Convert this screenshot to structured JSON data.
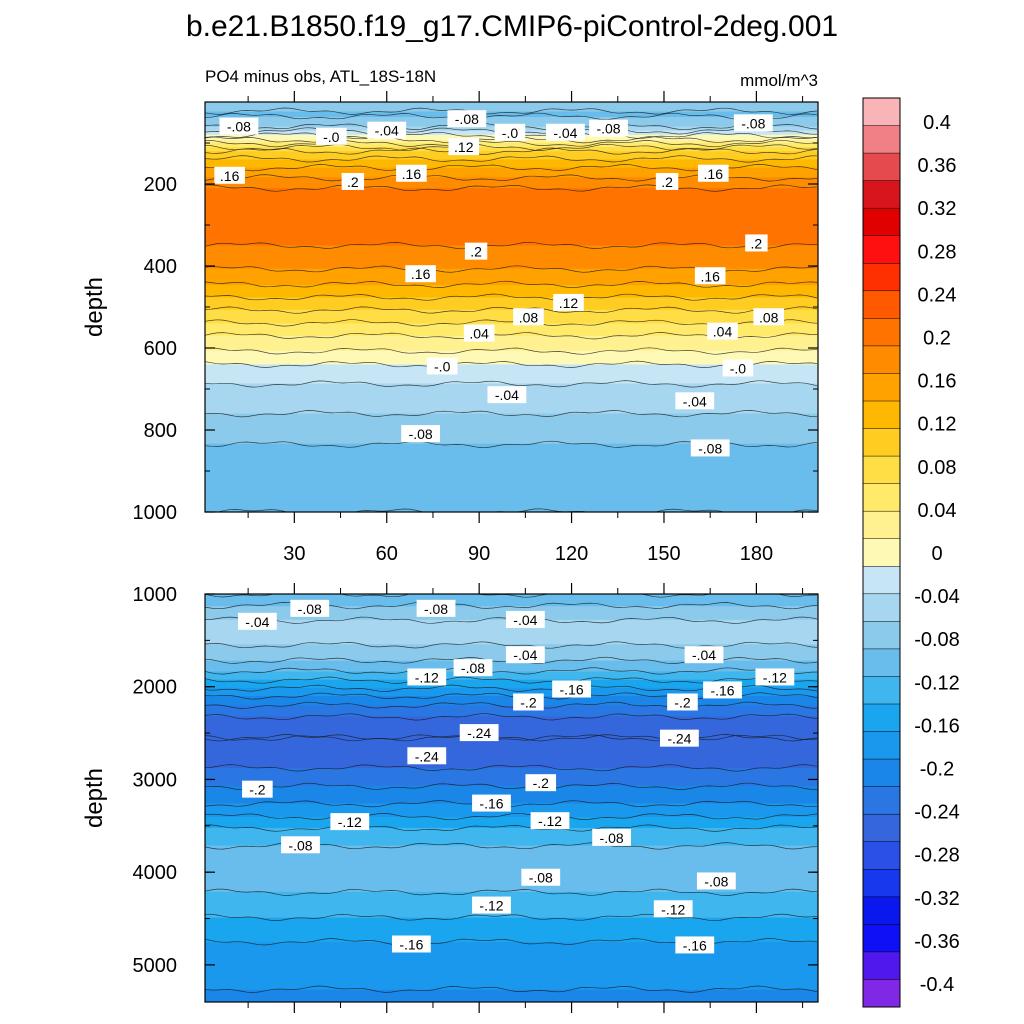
{
  "title": "b.e21.B1850.f19_g17.CMIP6-piControl-2deg.001",
  "subtitle_left": "PO4 minus obs, ATL_18S-18N",
  "subtitle_right": "mmol/m^3",
  "chart_data": {
    "type": "heatmap",
    "title": "b.e21.B1850.f19_g17.CMIP6-piControl-2deg.001",
    "variable": "PO4 minus obs, ATL_18S-18N",
    "units": "mmol/m^3",
    "xlim": [
      1,
      200
    ],
    "x_ticks": [
      30,
      60,
      90,
      120,
      150,
      180
    ],
    "panels": [
      {
        "name": "upper",
        "ylabel": "depth",
        "ylim": [
          0,
          1000
        ],
        "y_ticks": [
          200,
          400,
          600,
          800,
          1000
        ],
        "x_tick_labels_shown": true,
        "profile": [
          {
            "depth": 0,
            "value": -0.06
          },
          {
            "depth": 30,
            "value": -0.08
          },
          {
            "depth": 60,
            "value": -0.05
          },
          {
            "depth": 90,
            "value": 0.02
          },
          {
            "depth": 120,
            "value": 0.1
          },
          {
            "depth": 150,
            "value": 0.14
          },
          {
            "depth": 180,
            "value": 0.17
          },
          {
            "depth": 210,
            "value": 0.2
          },
          {
            "depth": 250,
            "value": 0.22
          },
          {
            "depth": 290,
            "value": 0.22
          },
          {
            "depth": 330,
            "value": 0.21
          },
          {
            "depth": 370,
            "value": 0.19
          },
          {
            "depth": 420,
            "value": 0.17
          },
          {
            "depth": 470,
            "value": 0.13
          },
          {
            "depth": 520,
            "value": 0.09
          },
          {
            "depth": 570,
            "value": 0.05
          },
          {
            "depth": 630,
            "value": 0.01
          },
          {
            "depth": 650,
            "value": -0.01
          },
          {
            "depth": 700,
            "value": -0.03
          },
          {
            "depth": 760,
            "value": -0.05
          },
          {
            "depth": 820,
            "value": -0.07
          },
          {
            "depth": 880,
            "value": -0.09
          },
          {
            "depth": 1000,
            "value": -0.1
          }
        ],
        "contour_labels": [
          {
            "text": "-.08",
            "x": 12,
            "y": 60
          },
          {
            "text": "-.0",
            "x": 42,
            "y": 85
          },
          {
            "text": "-.04",
            "x": 60,
            "y": 70
          },
          {
            "text": "-.08",
            "x": 86,
            "y": 42
          },
          {
            "text": "-.0",
            "x": 100,
            "y": 75
          },
          {
            "text": "-.04",
            "x": 118,
            "y": 75
          },
          {
            "text": "-.08",
            "x": 132,
            "y": 65
          },
          {
            "text": "-.08",
            "x": 179,
            "y": 52
          },
          {
            "text": ".12",
            "x": 85,
            "y": 110
          },
          {
            "text": ".16",
            "x": 9,
            "y": 180
          },
          {
            "text": ".2",
            "x": 49,
            "y": 195
          },
          {
            "text": ".16",
            "x": 68,
            "y": 175
          },
          {
            "text": ".2",
            "x": 151,
            "y": 195
          },
          {
            "text": ".16",
            "x": 166,
            "y": 175
          },
          {
            "text": ".2",
            "x": 89,
            "y": 365
          },
          {
            "text": ".2",
            "x": 180,
            "y": 345
          },
          {
            "text": ".16",
            "x": 71,
            "y": 420
          },
          {
            "text": ".16",
            "x": 165,
            "y": 425
          },
          {
            "text": ".12",
            "x": 119,
            "y": 490
          },
          {
            "text": ".08",
            "x": 106,
            "y": 525
          },
          {
            "text": ".08",
            "x": 184,
            "y": 525
          },
          {
            "text": ".04",
            "x": 90,
            "y": 565
          },
          {
            "text": ".04",
            "x": 169,
            "y": 560
          },
          {
            "text": "-.0",
            "x": 78,
            "y": 645
          },
          {
            "text": "-.0",
            "x": 174,
            "y": 650
          },
          {
            "text": "-.04",
            "x": 99,
            "y": 715
          },
          {
            "text": "-.04",
            "x": 160,
            "y": 730
          },
          {
            "text": "-.08",
            "x": 71,
            "y": 810
          },
          {
            "text": "-.08",
            "x": 165,
            "y": 845
          }
        ]
      },
      {
        "name": "lower",
        "ylabel": "depth",
        "ylim": [
          1000,
          5400
        ],
        "y_ticks": [
          1000,
          2000,
          3000,
          4000,
          5000
        ],
        "x_tick_labels_shown": false,
        "profile": [
          {
            "depth": 1000,
            "value": -0.1
          },
          {
            "depth": 1150,
            "value": -0.07
          },
          {
            "depth": 1350,
            "value": -0.04
          },
          {
            "depth": 1550,
            "value": -0.05
          },
          {
            "depth": 1750,
            "value": -0.08
          },
          {
            "depth": 1950,
            "value": -0.13
          },
          {
            "depth": 2150,
            "value": -0.19
          },
          {
            "depth": 2350,
            "value": -0.23
          },
          {
            "depth": 2550,
            "value": -0.25
          },
          {
            "depth": 2750,
            "value": -0.24
          },
          {
            "depth": 3000,
            "value": -0.21
          },
          {
            "depth": 3300,
            "value": -0.17
          },
          {
            "depth": 3550,
            "value": -0.12
          },
          {
            "depth": 3800,
            "value": -0.09
          },
          {
            "depth": 4050,
            "value": -0.08
          },
          {
            "depth": 4300,
            "value": -0.11
          },
          {
            "depth": 4550,
            "value": -0.13
          },
          {
            "depth": 4850,
            "value": -0.16
          },
          {
            "depth": 5400,
            "value": -0.18
          }
        ],
        "contour_labels": [
          {
            "text": "-.04",
            "x": 18,
            "y": 1300
          },
          {
            "text": "-.08",
            "x": 35,
            "y": 1160
          },
          {
            "text": "-.08",
            "x": 76,
            "y": 1160
          },
          {
            "text": "-.04",
            "x": 105,
            "y": 1280
          },
          {
            "text": "-.04",
            "x": 105,
            "y": 1660
          },
          {
            "text": "-.04",
            "x": 163,
            "y": 1660
          },
          {
            "text": "-.08",
            "x": 88,
            "y": 1800
          },
          {
            "text": "-.12",
            "x": 73,
            "y": 1900
          },
          {
            "text": "-.12",
            "x": 186,
            "y": 1900
          },
          {
            "text": "-.16",
            "x": 120,
            "y": 2030
          },
          {
            "text": "-.16",
            "x": 169,
            "y": 2040
          },
          {
            "text": "-.2",
            "x": 106,
            "y": 2170
          },
          {
            "text": "-.2",
            "x": 156,
            "y": 2170
          },
          {
            "text": "-.24",
            "x": 90,
            "y": 2500
          },
          {
            "text": "-.24",
            "x": 155,
            "y": 2560
          },
          {
            "text": "-.24",
            "x": 73,
            "y": 2750
          },
          {
            "text": "-.2",
            "x": 18,
            "y": 3110
          },
          {
            "text": "-.2",
            "x": 110,
            "y": 3040
          },
          {
            "text": "-.16",
            "x": 94,
            "y": 3260
          },
          {
            "text": "-.12",
            "x": 48,
            "y": 3460
          },
          {
            "text": "-.12",
            "x": 113,
            "y": 3450
          },
          {
            "text": "-.08",
            "x": 32,
            "y": 3710
          },
          {
            "text": "-.08",
            "x": 133,
            "y": 3630
          },
          {
            "text": "-.08",
            "x": 110,
            "y": 4060
          },
          {
            "text": "-.08",
            "x": 167,
            "y": 4100
          },
          {
            "text": "-.12",
            "x": 94,
            "y": 4360
          },
          {
            "text": "-.12",
            "x": 153,
            "y": 4400
          },
          {
            "text": "-.16",
            "x": 68,
            "y": 4780
          },
          {
            "text": "-.16",
            "x": 160,
            "y": 4790
          }
        ]
      }
    ],
    "colorbar": {
      "levels": [
        0.4,
        0.36,
        0.32,
        0.28,
        0.24,
        0.2,
        0.16,
        0.12,
        0.08,
        0.04,
        0,
        -0.04,
        -0.08,
        -0.12,
        -0.16,
        -0.2,
        -0.24,
        -0.28,
        -0.32,
        -0.36,
        -0.4
      ],
      "tick_labels": [
        "0.4",
        "0.36",
        "0.32",
        "0.28",
        "0.24",
        "0.2",
        "0.16",
        "0.12",
        "0.08",
        "0.04",
        "0",
        "-0.04",
        "-0.08",
        "-0.12",
        "-0.16",
        "-0.2",
        "-0.24",
        "-0.28",
        "-0.32",
        "-0.36",
        "-0.4"
      ],
      "colors": [
        "#f8b4b6",
        "#f08086",
        "#e44a4e",
        "#d8141c",
        "#e00000",
        "#ff1010",
        "#ff3000",
        "#ff5a00",
        "#ff7400",
        "#ff8c00",
        "#ffa200",
        "#ffb800",
        "#ffcc22",
        "#ffdd44",
        "#ffea6a",
        "#fff090",
        "#fff9b6",
        "#c6e6f6",
        "#a6d6f0",
        "#8ccaec",
        "#68bdec",
        "#40b6ef",
        "#1aa6ee",
        "#1a98ee",
        "#1a86e8",
        "#2a76e2",
        "#3566dc",
        "#2a50e8",
        "#1838ee",
        "#0a18ee",
        "#1010f6",
        "#5018ec",
        "#8028e6"
      ]
    }
  }
}
